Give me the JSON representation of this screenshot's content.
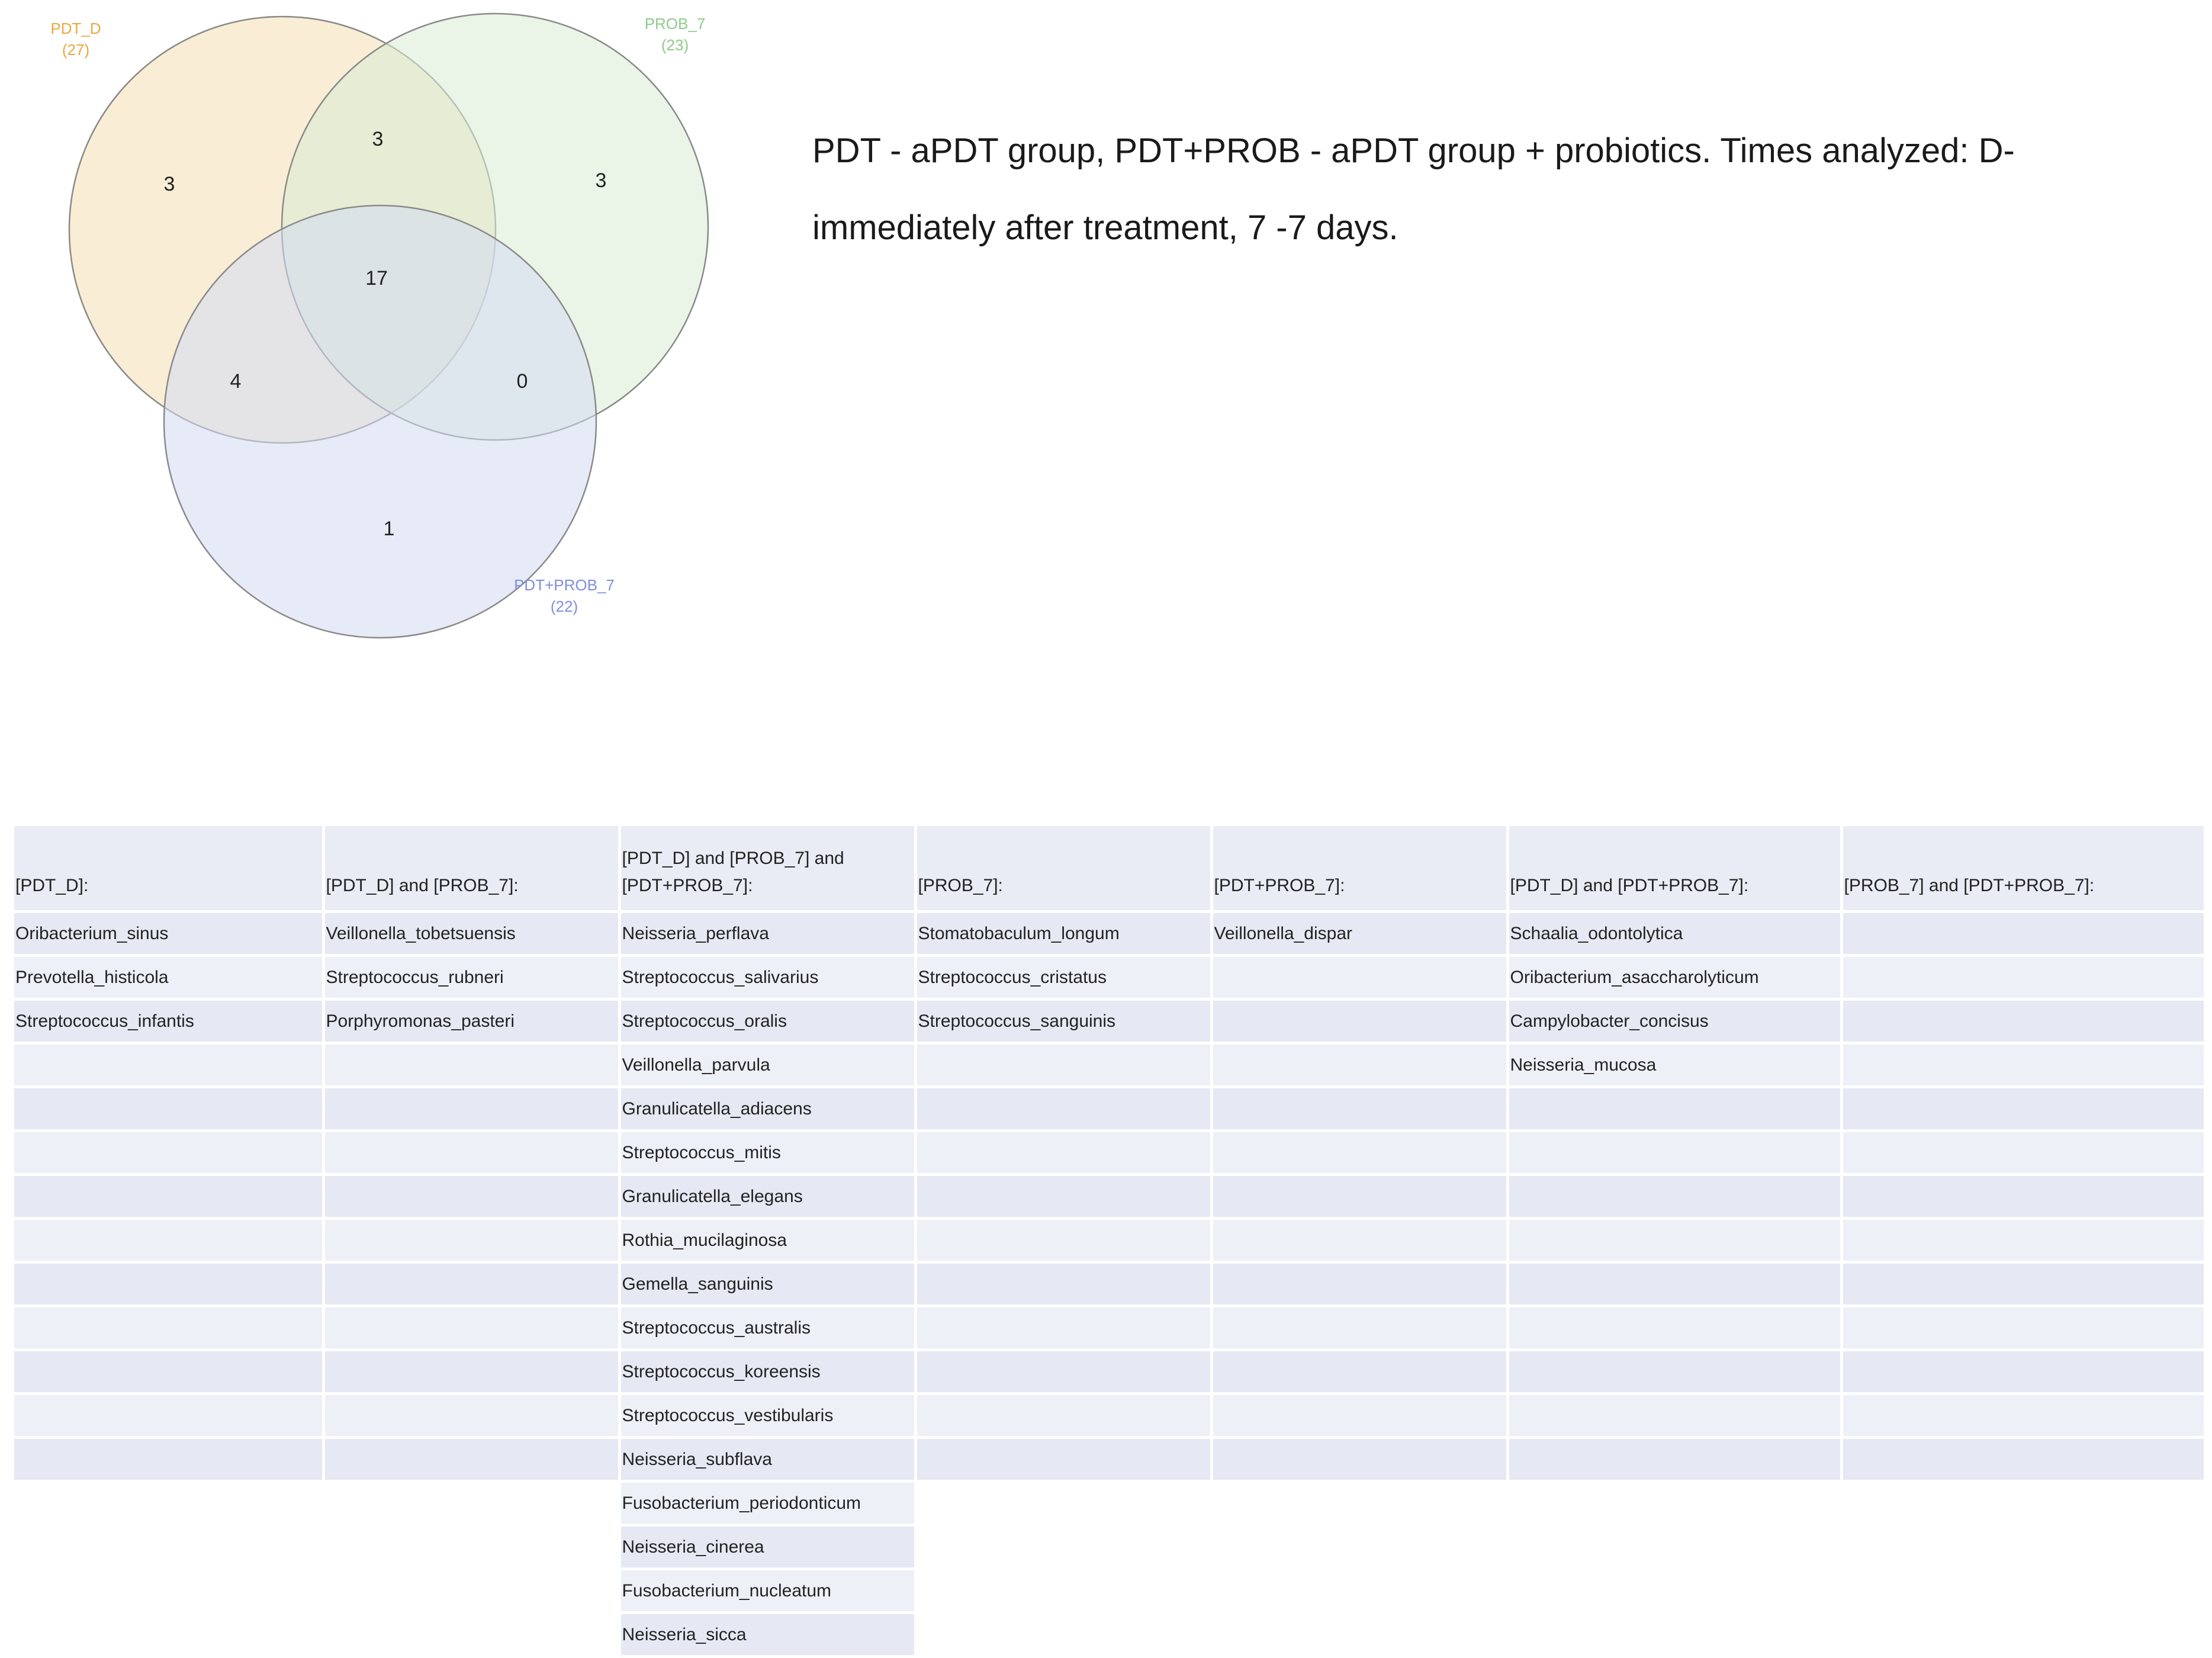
{
  "venn": {
    "sets": [
      {
        "id": "pdt_d",
        "name": "PDT_D",
        "count": "(27)",
        "color": "#e8a840",
        "fill": "#f4dfb2"
      },
      {
        "id": "prob_7",
        "name": "PROB_7",
        "count": "(23)",
        "color": "#8ecb8a",
        "fill": "#d9ecd3"
      },
      {
        "id": "pdt_prob_7",
        "name": "PDT+PROB_7",
        "count": "(22)",
        "color": "#7f8fe0",
        "fill": "#d3dbf2"
      }
    ],
    "regions": {
      "pdt_d_only": "3",
      "prob_7_only": "3",
      "pdt_prob_7_only": "1",
      "pdt_d_and_prob_7": "3",
      "pdt_d_and_pdt_prob_7": "4",
      "prob_7_and_pdt_prob_7": "0",
      "all_three": "17"
    }
  },
  "caption": {
    "line1": "PDT - aPDT group, PDT+PROB - aPDT group + probiotics. Times analyzed: D-",
    "line2": "immediately after treatment, 7 -7 days."
  },
  "table": {
    "headers": [
      "[PDT_D]:",
      "[PDT_D] and [PROB_7]:",
      "[PDT_D] and [PROB_7] and [PDT+PROB_7]:",
      "[PROB_7]:",
      "[PDT+PROB_7]:",
      "[PDT_D] and [PDT+PROB_7]:",
      "[PROB_7] and [PDT+PROB_7]:"
    ],
    "columns": [
      [
        "Oribacterium_sinus",
        "Prevotella_histicola",
        "Streptococcus_infantis"
      ],
      [
        "Veillonella_tobetsuensis",
        "Streptococcus_rubneri",
        "Porphyromonas_pasteri"
      ],
      [
        "Neisseria_perflava",
        "Streptococcus_salivarius",
        "Streptococcus_oralis",
        "Veillonella_parvula",
        "Granulicatella_adiacens",
        "Streptococcus_mitis",
        "Granulicatella_elegans",
        "Rothia_mucilaginosa",
        "Gemella_sanguinis",
        "Streptococcus_australis",
        "Streptococcus_koreensis",
        "Streptococcus_vestibularis",
        "Neisseria_subflava",
        "Fusobacterium_periodonticum",
        "Neisseria_cinerea",
        "Fusobacterium_nucleatum",
        "Neisseria_sicca"
      ],
      [
        "Stomatobaculum_longum",
        "Streptococcus_cristatus",
        "Streptococcus_sanguinis"
      ],
      [
        "Veillonella_dispar"
      ],
      [
        "Schaalia_odontolytica",
        "Oribacterium_asaccharolyticum",
        "Campylobacter_concisus",
        "Neisseria_mucosa"
      ],
      []
    ]
  }
}
